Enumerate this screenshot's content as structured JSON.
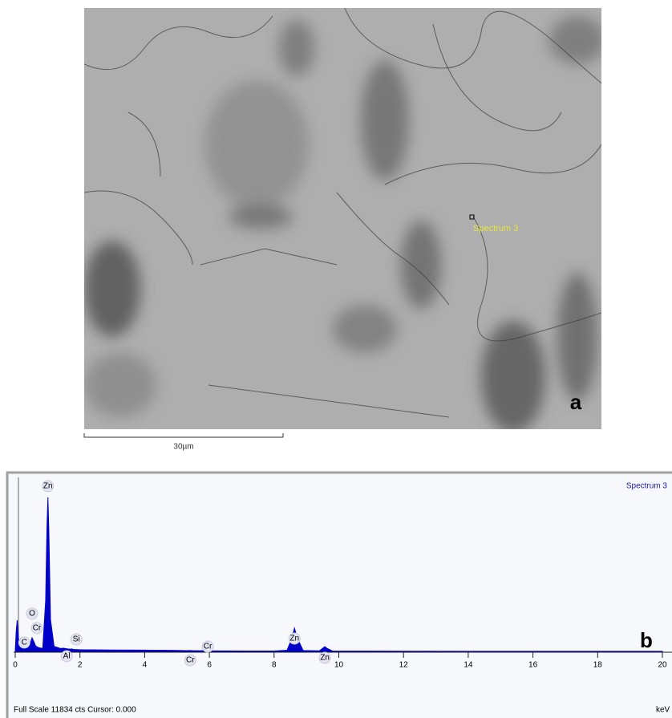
{
  "image": {
    "scale_bar": "30µm",
    "spectrum_label": "Spectrum 3",
    "panel": "a"
  },
  "chart_data": {
    "type": "area",
    "title": "Spectrum 3",
    "panel": "b",
    "footer": "Full Scale 11834 cts Cursor: 0.000",
    "x_label": "keV",
    "color": "#0000c8",
    "x": [
      0,
      0.03,
      0.06,
      0.1,
      0.18,
      0.24,
      0.28,
      0.32,
      0.4,
      0.47,
      0.52,
      0.57,
      0.63,
      0.72,
      0.85,
      0.94,
      0.98,
      1.01,
      1.04,
      1.09,
      1.2,
      1.4,
      1.49,
      1.58,
      1.68,
      1.74,
      1.8,
      2.0,
      3.0,
      4.0,
      5.0,
      5.3,
      5.41,
      5.5,
      5.85,
      5.95,
      6.05,
      7.0,
      8.0,
      8.4,
      8.55,
      8.63,
      8.72,
      8.9,
      9.4,
      9.52,
      9.57,
      9.63,
      9.8,
      11.0,
      14.0,
      20.0
    ],
    "values": [
      0,
      1400,
      2150,
      900,
      300,
      450,
      660,
      380,
      300,
      600,
      940,
      700,
      380,
      260,
      200,
      3500,
      8500,
      10617,
      8200,
      2200,
      350,
      200,
      220,
      190,
      150,
      170,
      140,
      120,
      100,
      90,
      70,
      55,
      60,
      50,
      45,
      50,
      40,
      30,
      30,
      80,
      900,
      1600,
      900,
      60,
      40,
      250,
      330,
      220,
      30,
      20,
      10,
      5
    ],
    "peak_labels": [
      {
        "label": "Zn",
        "x": 1.01
      },
      {
        "label": "O",
        "x": 0.52
      },
      {
        "label": "Cr",
        "x": 0.57
      },
      {
        "label": "C",
        "x": 0.28
      },
      {
        "label": "Si",
        "x": 1.74
      },
      {
        "label": "Al",
        "x": 1.49
      },
      {
        "label": "Cr",
        "x": 5.41
      },
      {
        "label": "Cr",
        "x": 5.95
      },
      {
        "label": "Zn",
        "x": 8.63
      },
      {
        "label": "Zn",
        "x": 9.57
      }
    ],
    "xlim": [
      0,
      20
    ],
    "xticks": [
      0,
      2,
      4,
      6,
      8,
      10,
      12,
      14,
      16,
      18,
      20
    ],
    "ylim": [
      0,
      11834
    ]
  }
}
